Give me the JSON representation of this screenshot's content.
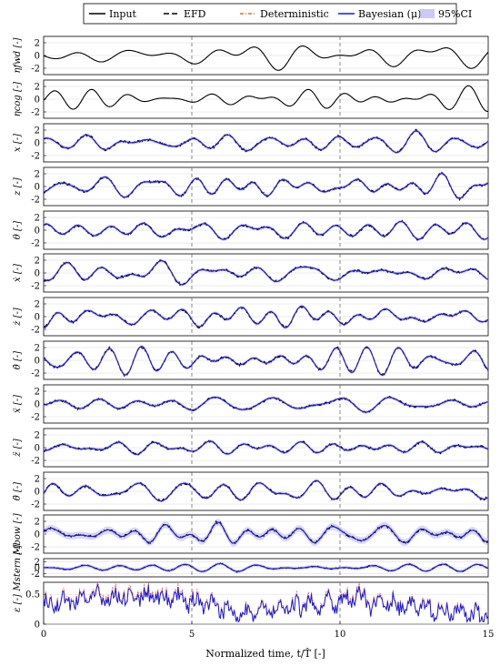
{
  "chart_data": {
    "type": "line",
    "xlabel": "Normalized time, t/T̂ [-]",
    "xlim": [
      0,
      15
    ],
    "x_ticks": [
      "0",
      "5",
      "10",
      "15"
    ],
    "vertical_markers": [
      5,
      10
    ],
    "legend": {
      "placement": "top",
      "entries": [
        {
          "label": "Input",
          "style": "solid",
          "color": "#000000"
        },
        {
          "label": "EFD",
          "style": "dashed",
          "color": "#000000"
        },
        {
          "label": "Deterministic",
          "style": "dash-dot",
          "color": "#e8701a"
        },
        {
          "label": "Bayesian (μ)",
          "style": "solid",
          "color": "#1a1adc"
        },
        {
          "label": "95%CI",
          "style": "band",
          "color": "#b8b8ee"
        }
      ]
    },
    "panels": [
      {
        "ylabel": "ηₐₑₔ [-]",
        "ylabel_text": "ηfwd [-]",
        "yticks": [
          "2",
          "0",
          "-2"
        ],
        "ylim": [
          -3,
          3
        ],
        "type": "input"
      },
      {
        "ylabel_text": "ηcog [-]",
        "yticks": [
          "2",
          "0",
          "-2"
        ],
        "ylim": [
          -3,
          3
        ],
        "type": "input"
      },
      {
        "ylabel_text": "x [-]",
        "yticks": [
          "2",
          "0",
          "-2"
        ],
        "ylim": [
          -3,
          3
        ],
        "type": "output"
      },
      {
        "ylabel_text": "z [-]",
        "yticks": [
          "2",
          "0",
          "-2"
        ],
        "ylim": [
          -3,
          3
        ],
        "type": "output"
      },
      {
        "ylabel_text": "θ [-]",
        "yticks": [
          "2",
          "0",
          "-2"
        ],
        "ylim": [
          -3,
          3
        ],
        "type": "output"
      },
      {
        "ylabel_text": "ẋ [-]",
        "yticks": [
          "2",
          "0",
          "-2"
        ],
        "ylim": [
          -3,
          3
        ],
        "type": "output"
      },
      {
        "ylabel_text": "ż [-]",
        "yticks": [
          "2",
          "0",
          "-2"
        ],
        "ylim": [
          -3,
          3
        ],
        "type": "output"
      },
      {
        "ylabel_text": "θ̇ [-]",
        "yticks": [
          "2",
          "0",
          "-2"
        ],
        "ylim": [
          -3,
          3
        ],
        "type": "output"
      },
      {
        "ylabel_text": "ẍ [-]",
        "yticks": [
          "2",
          "0",
          "-2"
        ],
        "ylim": [
          -3,
          3
        ],
        "type": "output"
      },
      {
        "ylabel_text": "z̈ [-]",
        "yticks": [
          "2",
          "0",
          "-2"
        ],
        "ylim": [
          -3,
          3
        ],
        "type": "output"
      },
      {
        "ylabel_text": "θ̈ [-]",
        "yticks": [
          "2",
          "0",
          "-2"
        ],
        "ylim": [
          -3,
          3
        ],
        "type": "output"
      },
      {
        "ylabel_text": "Mbow [-]",
        "yticks": [
          "2",
          "0",
          "-2"
        ],
        "ylim": [
          -3,
          3
        ],
        "type": "output"
      },
      {
        "ylabel_text": "Mstern [-]",
        "yticks": [
          "2",
          "0",
          "-2"
        ],
        "ylim": [
          -3,
          3
        ],
        "type": "output"
      },
      {
        "ylabel_text": "ε [-]",
        "yticks": [
          "0.5",
          "0"
        ],
        "ylim": [
          0,
          0.7
        ],
        "type": "error"
      }
    ]
  }
}
